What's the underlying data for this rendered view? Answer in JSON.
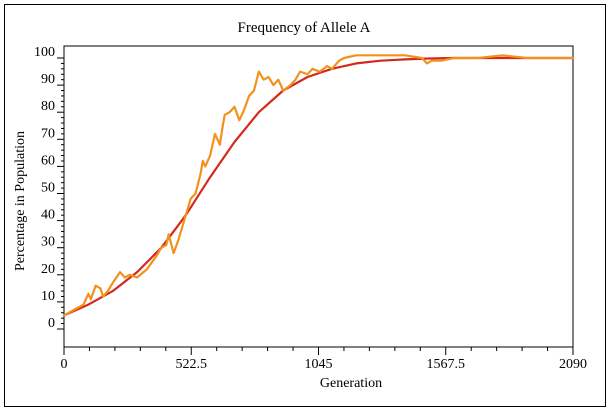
{
  "chart_data": {
    "type": "line",
    "title": "Frequency of Allele A",
    "xlabel": "Generation",
    "ylabel": "Percentage in Population",
    "xlim": [
      0,
      2090
    ],
    "ylim": [
      0,
      100
    ],
    "x_ticks": [
      0,
      522.5,
      1045,
      1567.5,
      2090
    ],
    "x_tick_labels": [
      "0",
      "522.5",
      "1045",
      "1567.5",
      "2090"
    ],
    "y_ticks": [
      0,
      10,
      20,
      30,
      40,
      50,
      60,
      70,
      80,
      90,
      100
    ],
    "y_tick_labels": [
      "0",
      "10",
      "20",
      "30",
      "40",
      "50",
      "60",
      "70",
      "80",
      "90",
      "100"
    ],
    "grid": false,
    "legend": false,
    "series": [
      {
        "color": "#d42a1c",
        "x": [
          0,
          100,
          200,
          300,
          400,
          500,
          600,
          700,
          800,
          900,
          1000,
          1100,
          1200,
          1300,
          1400,
          1500,
          1600,
          1800,
          2090
        ],
        "y": [
          5,
          9,
          14,
          21,
          30,
          42,
          56,
          69,
          80,
          88,
          93,
          96,
          98,
          99,
          99.5,
          99.8,
          100,
          100,
          100
        ]
      },
      {
        "color": "#f2921c",
        "x": [
          0,
          40,
          60,
          80,
          100,
          110,
          130,
          150,
          160,
          180,
          200,
          230,
          250,
          270,
          300,
          340,
          380,
          400,
          420,
          430,
          450,
          470,
          500,
          520,
          540,
          560,
          570,
          580,
          600,
          620,
          640,
          650,
          660,
          680,
          700,
          720,
          740,
          760,
          780,
          800,
          820,
          840,
          860,
          880,
          900,
          930,
          950,
          970,
          1000,
          1020,
          1050,
          1080,
          1100,
          1130,
          1150,
          1200,
          1300,
          1400,
          1470,
          1490,
          1510,
          1550,
          1600,
          1700,
          1800,
          1900,
          2000,
          2090
        ],
        "y": [
          5,
          7,
          8,
          9,
          13,
          11,
          16,
          15,
          12,
          14,
          17,
          21,
          19,
          20,
          19,
          22,
          27,
          30,
          31,
          35,
          28,
          33,
          42,
          48,
          50,
          57,
          62,
          60,
          64,
          72,
          68,
          74,
          79,
          80,
          82,
          77,
          81,
          86,
          88,
          95,
          92,
          93,
          90,
          92,
          88,
          90,
          92,
          95,
          94,
          96,
          95,
          97,
          96,
          99,
          100,
          101,
          101,
          101,
          100,
          98,
          99,
          99,
          100,
          100,
          101,
          100,
          100,
          100
        ]
      }
    ]
  }
}
